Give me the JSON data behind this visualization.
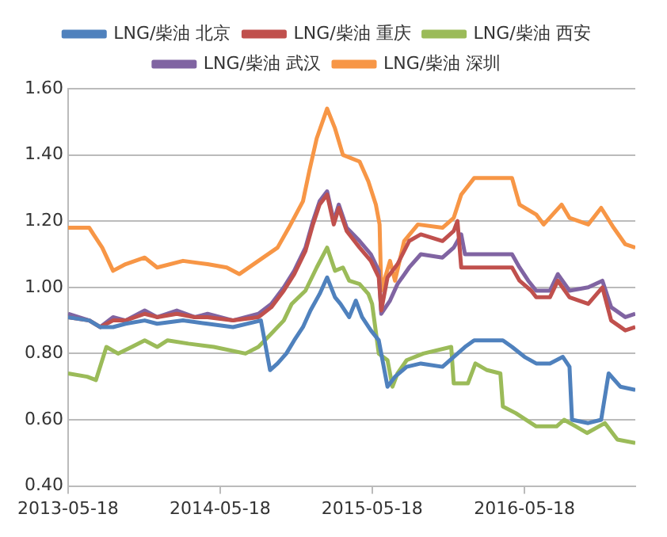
{
  "chart_data": {
    "type": "line",
    "xlim": [
      "2013-05-18",
      "2017-02-08"
    ],
    "xticks": [
      "2013-05-18",
      "2014-05-18",
      "2015-05-18",
      "2016-05-18"
    ],
    "ylim": [
      0.4,
      1.6
    ],
    "yticks": [
      {
        "value": 0.4,
        "label": "0.40"
      },
      {
        "value": 0.6,
        "label": "0.60"
      },
      {
        "value": 0.8,
        "label": "0.80"
      },
      {
        "value": 1.0,
        "label": "1.00"
      },
      {
        "value": 1.2,
        "label": "1.20"
      },
      {
        "value": 1.4,
        "label": "1.40"
      },
      {
        "value": 1.6,
        "label": "1.60"
      }
    ],
    "grid": "y",
    "legend": "top",
    "marker": "none",
    "line_style": "solid",
    "series": [
      {
        "name": "LNG/柴油 北京",
        "color": "#4f81bd",
        "x": [
          "2013-05-18",
          "2013-07-08",
          "2013-08-03",
          "2013-09-03",
          "2013-10-03",
          "2013-11-18",
          "2013-12-18",
          "2014-02-18",
          "2014-04-18",
          "2014-06-18",
          "2014-08-24",
          "2014-09-15",
          "2014-10-03",
          "2014-10-24",
          "2014-11-12",
          "2014-12-03",
          "2014-12-21",
          "2015-01-12",
          "2015-01-30",
          "2015-02-18",
          "2015-03-03",
          "2015-03-24",
          "2015-04-09",
          "2015-04-24",
          "2015-05-15",
          "2015-06-03",
          "2015-06-24",
          "2015-07-12",
          "2015-08-09",
          "2015-09-12",
          "2015-11-03",
          "2015-11-30",
          "2015-12-27",
          "2016-01-18",
          "2016-03-27",
          "2016-04-18",
          "2016-05-18",
          "2016-06-15",
          "2016-07-18",
          "2016-08-18",
          "2016-09-03",
          "2016-09-09",
          "2016-10-18",
          "2016-11-18",
          "2016-12-06",
          "2017-01-03",
          "2017-02-08"
        ],
        "values": [
          0.91,
          0.9,
          0.88,
          0.88,
          0.89,
          0.9,
          0.89,
          0.9,
          0.89,
          0.88,
          0.9,
          0.75,
          0.77,
          0.8,
          0.84,
          0.88,
          0.93,
          0.98,
          1.03,
          0.97,
          0.95,
          0.91,
          0.96,
          0.91,
          0.87,
          0.84,
          0.7,
          0.73,
          0.76,
          0.77,
          0.76,
          0.79,
          0.82,
          0.84,
          0.84,
          0.82,
          0.79,
          0.77,
          0.77,
          0.79,
          0.76,
          0.6,
          0.59,
          0.6,
          0.74,
          0.7,
          0.69
        ]
      },
      {
        "name": "LNG/柴油 重庆",
        "color": "#c0504d",
        "x": [
          "2013-05-18",
          "2013-07-08",
          "2013-08-03",
          "2013-09-03",
          "2013-10-03",
          "2013-11-18",
          "2013-12-18",
          "2014-02-03",
          "2014-03-18",
          "2014-04-18",
          "2014-06-18",
          "2014-08-18",
          "2014-09-18",
          "2014-10-18",
          "2014-11-12",
          "2014-12-09",
          "2014-12-27",
          "2015-01-12",
          "2015-01-30",
          "2015-02-15",
          "2015-02-27",
          "2015-03-18",
          "2015-04-18",
          "2015-05-15",
          "2015-06-03",
          "2015-06-09",
          "2015-06-24",
          "2015-07-18",
          "2015-08-15",
          "2015-09-12",
          "2015-11-03",
          "2015-11-30",
          "2015-12-09",
          "2015-12-18",
          "2016-04-18",
          "2016-05-06",
          "2016-06-03",
          "2016-06-15",
          "2016-07-18",
          "2016-08-06",
          "2016-09-03",
          "2016-10-18",
          "2016-11-21",
          "2016-12-12",
          "2017-01-15",
          "2017-02-08"
        ],
        "values": [
          0.91,
          0.9,
          0.88,
          0.9,
          0.9,
          0.92,
          0.91,
          0.92,
          0.91,
          0.91,
          0.9,
          0.91,
          0.94,
          0.99,
          1.04,
          1.11,
          1.19,
          1.25,
          1.28,
          1.19,
          1.24,
          1.17,
          1.12,
          1.08,
          1.03,
          0.93,
          1.03,
          1.07,
          1.14,
          1.16,
          1.14,
          1.17,
          1.2,
          1.06,
          1.06,
          1.02,
          0.99,
          0.97,
          0.97,
          1.02,
          0.97,
          0.95,
          1.0,
          0.9,
          0.87,
          0.88
        ]
      },
      {
        "name": "LNG/柴油 西安",
        "color": "#9bbb59",
        "x": [
          "2013-05-18",
          "2013-07-03",
          "2013-07-24",
          "2013-08-18",
          "2013-09-15",
          "2013-10-18",
          "2013-11-18",
          "2013-12-18",
          "2014-01-12",
          "2014-03-03",
          "2014-05-03",
          "2014-07-18",
          "2014-08-18",
          "2014-09-18",
          "2014-10-18",
          "2014-11-06",
          "2014-12-09",
          "2015-01-05",
          "2015-01-30",
          "2015-02-18",
          "2015-03-09",
          "2015-03-24",
          "2015-04-18",
          "2015-05-09",
          "2015-05-18",
          "2015-06-03",
          "2015-06-24",
          "2015-07-06",
          "2015-07-18",
          "2015-08-09",
          "2015-09-18",
          "2015-11-24",
          "2015-11-30",
          "2016-01-03",
          "2016-01-21",
          "2016-02-18",
          "2016-03-21",
          "2016-03-27",
          "2016-04-27",
          "2016-06-15",
          "2016-08-03",
          "2016-08-21",
          "2016-09-18",
          "2016-10-15",
          "2016-11-27",
          "2016-12-27",
          "2017-02-08"
        ],
        "values": [
          0.74,
          0.73,
          0.72,
          0.82,
          0.8,
          0.82,
          0.84,
          0.82,
          0.84,
          0.83,
          0.82,
          0.8,
          0.82,
          0.86,
          0.9,
          0.95,
          0.99,
          1.06,
          1.12,
          1.05,
          1.06,
          1.02,
          1.01,
          0.98,
          0.95,
          0.8,
          0.78,
          0.7,
          0.74,
          0.78,
          0.8,
          0.82,
          0.71,
          0.71,
          0.77,
          0.75,
          0.74,
          0.64,
          0.62,
          0.58,
          0.58,
          0.6,
          0.58,
          0.56,
          0.59,
          0.54,
          0.53
        ]
      },
      {
        "name": "LNG/柴油 武汉",
        "color": "#8064a2",
        "x": [
          "2013-05-18",
          "2013-07-08",
          "2013-08-03",
          "2013-09-03",
          "2013-10-03",
          "2013-11-18",
          "2013-12-18",
          "2014-02-03",
          "2014-03-18",
          "2014-04-18",
          "2014-06-18",
          "2014-08-18",
          "2014-09-18",
          "2014-10-18",
          "2014-11-12",
          "2014-12-09",
          "2014-12-27",
          "2015-01-12",
          "2015-01-30",
          "2015-02-15",
          "2015-02-27",
          "2015-03-18",
          "2015-04-18",
          "2015-05-15",
          "2015-06-03",
          "2015-06-09",
          "2015-06-30",
          "2015-07-18",
          "2015-08-15",
          "2015-09-12",
          "2015-11-03",
          "2015-11-30",
          "2015-12-18",
          "2015-12-27",
          "2016-04-18",
          "2016-05-06",
          "2016-05-27",
          "2016-06-15",
          "2016-07-18",
          "2016-08-06",
          "2016-09-03",
          "2016-10-18",
          "2016-11-21",
          "2016-12-12",
          "2017-01-15",
          "2017-02-08"
        ],
        "values": [
          0.92,
          0.9,
          0.88,
          0.91,
          0.9,
          0.93,
          0.91,
          0.93,
          0.91,
          0.92,
          0.9,
          0.92,
          0.95,
          1.0,
          1.05,
          1.12,
          1.2,
          1.26,
          1.29,
          1.2,
          1.25,
          1.18,
          1.14,
          1.1,
          1.05,
          0.92,
          0.96,
          1.01,
          1.06,
          1.1,
          1.09,
          1.12,
          1.16,
          1.1,
          1.1,
          1.06,
          1.02,
          0.99,
          0.99,
          1.04,
          0.99,
          1.0,
          1.02,
          0.94,
          0.91,
          0.92
        ]
      },
      {
        "name": "LNG/柴油 深圳",
        "color": "#f79646",
        "x": [
          "2013-05-18",
          "2013-07-08",
          "2013-07-18",
          "2013-08-08",
          "2013-09-03",
          "2013-10-03",
          "2013-11-18",
          "2013-12-18",
          "2014-02-18",
          "2014-04-18",
          "2014-06-03",
          "2014-07-03",
          "2014-08-18",
          "2014-10-03",
          "2014-10-30",
          "2014-12-03",
          "2014-12-18",
          "2015-01-05",
          "2015-01-30",
          "2015-02-18",
          "2015-03-09",
          "2015-04-18",
          "2015-05-09",
          "2015-05-27",
          "2015-06-05",
          "2015-06-09",
          "2015-06-30",
          "2015-07-12",
          "2015-08-03",
          "2015-09-05",
          "2015-11-03",
          "2015-11-30",
          "2015-12-18",
          "2016-01-18",
          "2016-04-18",
          "2016-05-06",
          "2016-06-15",
          "2016-07-03",
          "2016-08-15",
          "2016-09-03",
          "2016-10-18",
          "2016-11-18",
          "2016-12-18",
          "2017-01-15",
          "2017-02-08"
        ],
        "values": [
          1.18,
          1.18,
          1.16,
          1.12,
          1.05,
          1.07,
          1.09,
          1.06,
          1.08,
          1.07,
          1.06,
          1.04,
          1.08,
          1.12,
          1.18,
          1.26,
          1.35,
          1.45,
          1.54,
          1.48,
          1.4,
          1.38,
          1.32,
          1.25,
          1.19,
          0.99,
          1.08,
          1.02,
          1.14,
          1.19,
          1.18,
          1.21,
          1.28,
          1.33,
          1.33,
          1.25,
          1.22,
          1.19,
          1.25,
          1.21,
          1.19,
          1.24,
          1.18,
          1.13,
          1.12
        ]
      }
    ]
  }
}
